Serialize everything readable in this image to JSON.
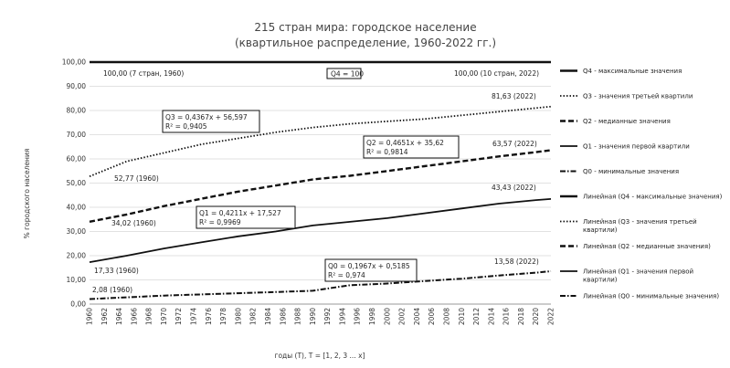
{
  "chart_data": {
    "type": "line",
    "title": "215 стран мира: городское население",
    "subtitle": "(квартильное распределение, 1960-2022 гг.)",
    "xlabel": "годы (T), T = [1, 2, 3 ... x]",
    "ylabel": "% городского населения",
    "ylim": [
      0,
      100
    ],
    "yticks": [
      "0,00",
      "10,00",
      "20,00",
      "30,00",
      "40,00",
      "50,00",
      "60,00",
      "70,00",
      "80,00",
      "90,00",
      "100,00"
    ],
    "xlim": [
      1960,
      2022
    ],
    "xticks": [
      "1960",
      "1962",
      "1964",
      "1966",
      "1968",
      "1970",
      "1972",
      "1974",
      "1976",
      "1978",
      "1980",
      "1982",
      "1984",
      "1986",
      "1988",
      "1990",
      "1992",
      "1994",
      "1996",
      "1998",
      "2000",
      "2002",
      "2004",
      "2006",
      "2008",
      "2010",
      "2012",
      "2014",
      "2016",
      "2018",
      "2020",
      "2022"
    ],
    "grid": true,
    "legend_position": "right",
    "series": [
      {
        "name": "Q4 - максимальные значения",
        "style": "solid-thick",
        "x": [
          1960,
          2022
        ],
        "values": [
          100.0,
          100.0
        ]
      },
      {
        "name": "Q3 - значения третьей квартили",
        "style": "dotted",
        "x": [
          1960,
          1965,
          1970,
          1975,
          1980,
          1985,
          1990,
          1995,
          2000,
          2005,
          2010,
          2015,
          2020,
          2022
        ],
        "values": [
          52.77,
          59.0,
          62.5,
          66.0,
          68.5,
          71.0,
          73.0,
          74.5,
          75.5,
          76.5,
          78.0,
          79.5,
          81.0,
          81.63
        ]
      },
      {
        "name": "Q2 - медианные значения",
        "style": "dashed-thick",
        "x": [
          1960,
          1965,
          1970,
          1975,
          1980,
          1985,
          1990,
          1995,
          2000,
          2005,
          2010,
          2015,
          2020,
          2022
        ],
        "values": [
          34.02,
          37.0,
          40.5,
          43.5,
          46.5,
          49.0,
          51.5,
          53.0,
          55.0,
          57.0,
          59.0,
          61.0,
          62.8,
          63.57
        ]
      },
      {
        "name": "Q1 - значения первой квартили",
        "style": "solid",
        "x": [
          1960,
          1965,
          1970,
          1975,
          1980,
          1985,
          1990,
          1995,
          2000,
          2005,
          2010,
          2015,
          2020,
          2022
        ],
        "values": [
          17.33,
          20.0,
          23.0,
          25.5,
          28.0,
          30.0,
          32.5,
          34.0,
          35.5,
          37.5,
          39.5,
          41.5,
          43.0,
          43.43
        ]
      },
      {
        "name": "Q0 - минимальные значения",
        "style": "dashdot",
        "x": [
          1960,
          1965,
          1970,
          1975,
          1980,
          1985,
          1990,
          1995,
          2000,
          2005,
          2010,
          2015,
          2020,
          2022
        ],
        "values": [
          2.08,
          2.8,
          3.5,
          4.0,
          4.5,
          5.0,
          5.5,
          7.8,
          8.5,
          9.5,
          10.5,
          11.8,
          13.0,
          13.58
        ]
      }
    ],
    "trendline_legend": [
      {
        "name": "Линейная (Q4 - максимальные значения)",
        "style": "solid-thick"
      },
      {
        "name": "Линейная (Q3 - значения третьей квартили)",
        "style": "dotted"
      },
      {
        "name": "Линейная (Q2 - медианные значения)",
        "style": "dashed-thick"
      },
      {
        "name": "Линейная (Q1 - значения первой квартили)",
        "style": "solid"
      },
      {
        "name": "Линейная (Q0 - минимальные значения)",
        "style": "dashdot"
      }
    ],
    "annotations": {
      "q4_left": "100,00 (7 стран, 1960)",
      "q4_box": "Q4 = 100",
      "q4_right": "100,00 (10 стран, 2022)",
      "q3_eq": "Q3 = 0,4367x + 56,597",
      "q3_r2": "R² = 0,9405",
      "q3_start": "52,77 (1960)",
      "q3_end": "81,63 (2022)",
      "q2_eq": "Q2 = 0,4651x + 35,62",
      "q2_r2": "R² = 0,9814",
      "q2_start": "34,02 (1960)",
      "q2_end": "63,57 (2022)",
      "q1_eq": "Q1 = 0,4211x + 17,527",
      "q1_r2": "R² = 0,9969",
      "q1_start": "17,33 (1960)",
      "q1_end": "43,43 (2022)",
      "q0_eq": "Q0 = 0,1967x + 0,5185",
      "q0_r2": "R² = 0,974",
      "q0_start": "2,08 (1960)",
      "q0_end": "13,58 (2022)"
    }
  }
}
